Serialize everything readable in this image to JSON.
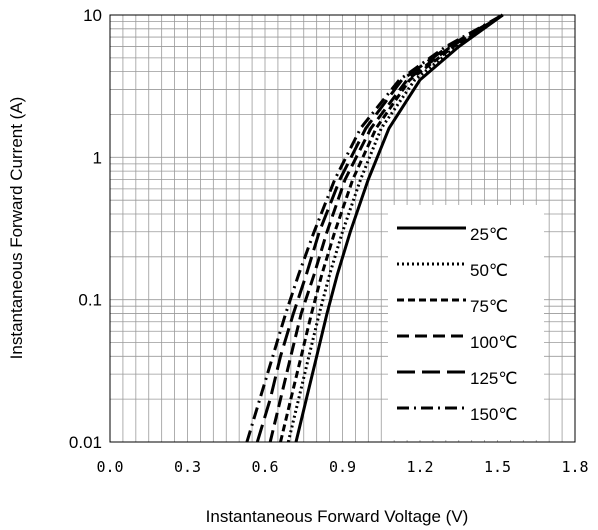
{
  "chart_data": {
    "type": "line",
    "xlabel": "Instantaneous Forward Voltage (V)",
    "ylabel": "Instantaneous Forward Current (A)",
    "xlim": [
      0,
      1.8
    ],
    "ylim": [
      0.01,
      10
    ],
    "y_scale": "log",
    "grid": true,
    "legend_position": "right-center",
    "x_tick_labels": [
      "0.0",
      "0.3",
      "0.6",
      "0.9",
      "1.2",
      "1.5",
      "1.8"
    ],
    "x_ticks": [
      0,
      0.3,
      0.6,
      0.9,
      1.2,
      1.5,
      1.8
    ],
    "y_tick_labels": [
      "0.01",
      "0.1",
      "1",
      "10"
    ],
    "y_ticks": [
      0.01,
      0.1,
      1,
      10
    ],
    "series": [
      {
        "name": "25℃",
        "style": "solid",
        "x": [
          0.72,
          0.76,
          0.8,
          0.84,
          0.88,
          0.93,
          1.0,
          1.08,
          1.2,
          1.35,
          1.52
        ],
        "y": [
          0.01,
          0.02,
          0.04,
          0.08,
          0.15,
          0.3,
          0.7,
          1.6,
          3.5,
          6.0,
          10.0
        ]
      },
      {
        "name": "50℃",
        "style": "dotted",
        "x": [
          0.69,
          0.73,
          0.77,
          0.81,
          0.85,
          0.9,
          0.97,
          1.05,
          1.18,
          1.34,
          1.52
        ],
        "y": [
          0.01,
          0.02,
          0.04,
          0.08,
          0.15,
          0.3,
          0.7,
          1.6,
          3.5,
          6.0,
          10.0
        ]
      },
      {
        "name": "75℃",
        "style": "dashed",
        "x": [
          0.66,
          0.7,
          0.74,
          0.78,
          0.82,
          0.87,
          0.94,
          1.03,
          1.16,
          1.33,
          1.52
        ],
        "y": [
          0.01,
          0.02,
          0.04,
          0.08,
          0.15,
          0.3,
          0.7,
          1.6,
          3.5,
          6.0,
          10.0
        ]
      },
      {
        "name": "100℃",
        "style": "longdash",
        "x": [
          0.62,
          0.66,
          0.7,
          0.74,
          0.79,
          0.84,
          0.91,
          1.01,
          1.15,
          1.32,
          1.52
        ],
        "y": [
          0.01,
          0.02,
          0.04,
          0.08,
          0.15,
          0.3,
          0.7,
          1.6,
          3.5,
          6.0,
          10.0
        ]
      },
      {
        "name": "125℃",
        "style": "xlongdash",
        "x": [
          0.57,
          0.62,
          0.66,
          0.71,
          0.76,
          0.81,
          0.89,
          0.99,
          1.13,
          1.31,
          1.52
        ],
        "y": [
          0.01,
          0.02,
          0.04,
          0.08,
          0.15,
          0.3,
          0.7,
          1.6,
          3.5,
          6.0,
          10.0
        ]
      },
      {
        "name": "150℃",
        "style": "dashdot",
        "x": [
          0.53,
          0.58,
          0.63,
          0.68,
          0.73,
          0.79,
          0.87,
          0.97,
          1.12,
          1.3,
          1.52
        ],
        "y": [
          0.01,
          0.02,
          0.04,
          0.08,
          0.15,
          0.3,
          0.7,
          1.6,
          3.5,
          6.0,
          10.0
        ]
      }
    ]
  },
  "colors": {
    "grid": "#9a9a9a",
    "line": "#000000",
    "background": "#ffffff"
  }
}
